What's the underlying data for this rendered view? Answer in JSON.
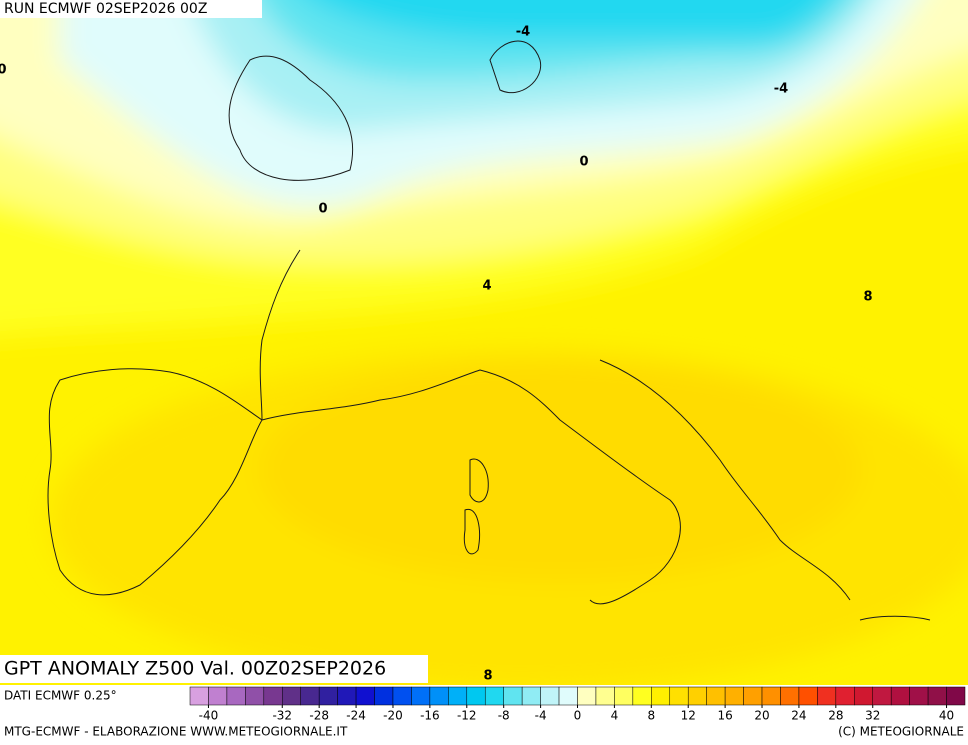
{
  "header": {
    "run": "RUN ECMWF 02SEP2026 00Z"
  },
  "map": {
    "title": "GPT ANOMALY Z500 Val. 00Z02SEP2026",
    "contour_labels": [
      -4,
      -4,
      0,
      0,
      0,
      4,
      8,
      8
    ]
  },
  "colorbar": {
    "range": [
      -42,
      42
    ],
    "ticks": [
      -40,
      -32,
      -28,
      -24,
      -20,
      -16,
      -12,
      -8,
      -4,
      0,
      4,
      8,
      12,
      16,
      20,
      24,
      28,
      32,
      40
    ],
    "colors": [
      "#d8a0e0",
      "#c080d0",
      "#a868c0",
      "#9050a8",
      "#783890",
      "#603088",
      "#482890",
      "#3020a0",
      "#2018b8",
      "#1010d0",
      "#0030e0",
      "#0050f0",
      "#0070f8",
      "#0090f8",
      "#00b0f8",
      "#00c8f0",
      "#20d8f0",
      "#60e4f0",
      "#90ecf4",
      "#c0f4f8",
      "#e0fcfc",
      "#ffffc0",
      "#ffff90",
      "#ffff60",
      "#ffff20",
      "#fff000",
      "#ffe000",
      "#ffd000",
      "#ffc000",
      "#ffb000",
      "#ffa000",
      "#ff9000",
      "#ff7000",
      "#ff5000",
      "#f03020",
      "#e02030",
      "#d01830",
      "#c01840",
      "#b01040",
      "#a01048",
      "#901048",
      "#800848"
    ]
  },
  "footer": {
    "source": "DATI ECMWF 0.25°",
    "credit": "MTG-ECMWF - ELABORAZIONE WWW.METEOGIORNALE.IT",
    "copyright": "(C) METEOGIORNALE"
  }
}
